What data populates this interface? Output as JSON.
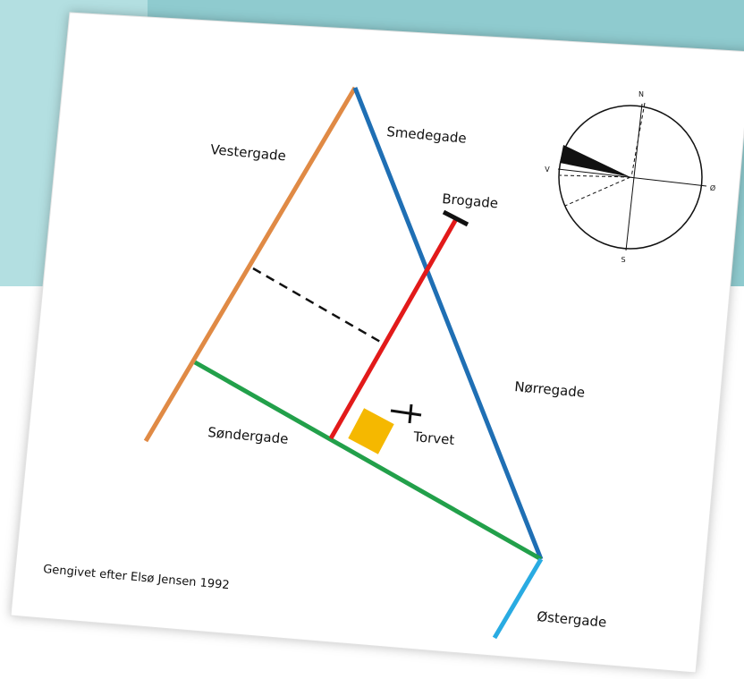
{
  "map": {
    "streets": {
      "vestergade": "Vestergade",
      "smedegade": "Smedegade",
      "brogade": "Brogade",
      "norregade": "Nørregade",
      "sondergade": "Søndergade",
      "torvet": "Torvet",
      "ostergade": "Østergade"
    },
    "compass": {
      "north": "N",
      "west": "V",
      "east": "Ø",
      "south": "S"
    },
    "credit": "Gengivet efter Elsø Jensen 1992"
  }
}
